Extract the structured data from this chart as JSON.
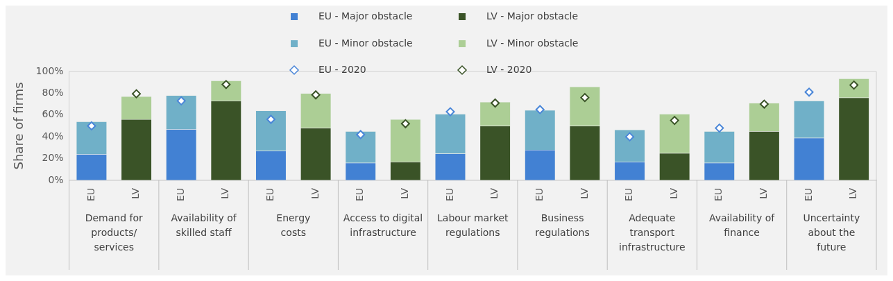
{
  "chart_data": {
    "type": "bar",
    "stacked": true,
    "categories": [
      "EU",
      "LV",
      "EU",
      "LV",
      "EU",
      "LV",
      "EU",
      "LV",
      "EU",
      "LV",
      "EU",
      "LV",
      "EU",
      "LV",
      "EU",
      "LV",
      "EU",
      "LV"
    ],
    "annotations": [
      "Demand for\nproducts/\nservices",
      "Availability of\nskilled staff",
      "Energy\ncosts",
      "Access to digital\ninfrastructure",
      "Labour market\nregulations",
      "Business\nregulations",
      "Adequate\ntransport\ninfrastructure",
      "Availability of\nfinance",
      "Uncertainty\nabout the\nfuture"
    ],
    "ylabel": "Share of firms",
    "ylim": [
      0,
      100
    ],
    "yticks": [
      {
        "value": 0,
        "label": "0%"
      },
      {
        "value": 20,
        "label": "20%"
      },
      {
        "value": 40,
        "label": "40%"
      },
      {
        "value": 60,
        "label": "60%"
      },
      {
        "value": 80,
        "label": "80%"
      },
      {
        "value": 100,
        "label": "100%"
      }
    ],
    "grid": false,
    "legend": "top",
    "marker": "diamond",
    "series": [
      {
        "name": "EU - Major obstacle",
        "color": "#4281d3",
        "values": [
          24,
          null,
          47,
          null,
          27,
          null,
          16,
          null,
          24.5,
          null,
          28,
          null,
          17,
          null,
          16,
          null,
          39,
          null
        ]
      },
      {
        "name": "LV - Major obstacle",
        "color": "#3a5327",
        "values": [
          null,
          56,
          null,
          73,
          null,
          48,
          null,
          17,
          null,
          50,
          null,
          50,
          null,
          25,
          null,
          45,
          null,
          76
        ]
      },
      {
        "name": "EU - Minor obstacle",
        "color": "#70b0c8",
        "values": [
          30,
          null,
          31,
          null,
          37,
          null,
          29,
          null,
          36.5,
          null,
          36.5,
          null,
          29.5,
          null,
          29,
          null,
          34,
          null
        ]
      },
      {
        "name": "LV - Minor obstacle",
        "color": "#acce95",
        "values": [
          null,
          21,
          null,
          18.5,
          null,
          32,
          null,
          39,
          null,
          22,
          null,
          36,
          null,
          36,
          null,
          26,
          null,
          17.5
        ]
      },
      {
        "name": "EU - 2020",
        "type": "scatter",
        "color": "#4a86d8",
        "values": [
          50,
          null,
          73,
          null,
          56,
          null,
          42,
          null,
          63,
          null,
          65,
          null,
          40,
          null,
          48,
          null,
          81,
          null
        ]
      },
      {
        "name": "LV - 2020",
        "type": "scatter",
        "color": "#3a5327",
        "values": [
          null,
          79.5,
          null,
          88,
          null,
          78.5,
          null,
          52,
          null,
          71,
          null,
          76,
          null,
          55,
          null,
          70,
          null,
          87.5
        ]
      }
    ]
  }
}
